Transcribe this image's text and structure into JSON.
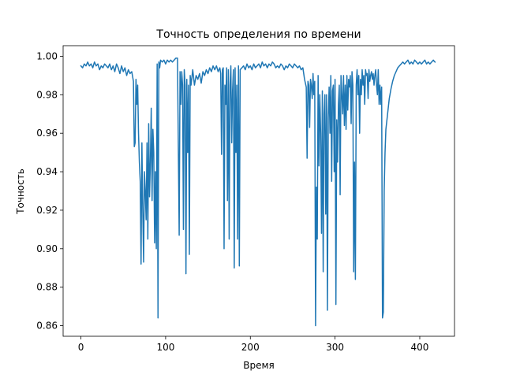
{
  "chart_data": {
    "type": "line",
    "title": "Точность определения по времени",
    "xlabel": "Время",
    "ylabel": "Точность",
    "xlim": [
      -21,
      441
    ],
    "ylim": [
      0.8545,
      1.0055
    ],
    "xticks": [
      0,
      100,
      200,
      300,
      400
    ],
    "xtick_labels": [
      "0",
      "100",
      "200",
      "300",
      "400"
    ],
    "yticks": [
      0.86,
      0.88,
      0.9,
      0.92,
      0.94,
      0.96,
      0.98,
      1.0
    ],
    "ytick_labels": [
      "0.86",
      "0.88",
      "0.90",
      "0.92",
      "0.94",
      "0.96",
      "0.98",
      "1.00"
    ],
    "grid": false,
    "legend": "none",
    "series": [
      {
        "color": "#1f77b4",
        "points": [
          [
            0,
            0.995
          ],
          [
            2,
            0.994
          ],
          [
            4,
            0.996
          ],
          [
            6,
            0.995
          ],
          [
            8,
            0.997
          ],
          [
            10,
            0.995
          ],
          [
            12,
            0.996
          ],
          [
            14,
            0.994
          ],
          [
            16,
            0.997
          ],
          [
            18,
            0.995
          ],
          [
            20,
            0.996
          ],
          [
            22,
            0.993
          ],
          [
            24,
            0.995
          ],
          [
            26,
            0.994
          ],
          [
            28,
            0.996
          ],
          [
            30,
            0.995
          ],
          [
            32,
            0.994
          ],
          [
            34,
            0.996
          ],
          [
            36,
            0.993
          ],
          [
            38,
            0.995
          ],
          [
            40,
            0.992
          ],
          [
            42,
            0.996
          ],
          [
            44,
            0.994
          ],
          [
            46,
            0.991
          ],
          [
            48,
            0.995
          ],
          [
            50,
            0.992
          ],
          [
            52,
            0.994
          ],
          [
            54,
            0.99
          ],
          [
            56,
            0.993
          ],
          [
            58,
            0.991
          ],
          [
            60,
            0.992
          ],
          [
            62,
            0.987
          ],
          [
            63,
            0.953
          ],
          [
            64,
            0.955
          ],
          [
            65,
            0.988
          ],
          [
            66,
            0.975
          ],
          [
            67,
            0.985
          ],
          [
            68,
            0.96
          ],
          [
            69,
            0.945
          ],
          [
            70,
            0.935
          ],
          [
            71,
            0.892
          ],
          [
            72,
            0.955
          ],
          [
            73,
            0.92
          ],
          [
            74,
            0.893
          ],
          [
            75,
            0.94
          ],
          [
            76,
            0.93
          ],
          [
            77,
            0.915
          ],
          [
            78,
            0.955
          ],
          [
            79,
            0.905
          ],
          [
            80,
            0.965
          ],
          [
            81,
            0.927
          ],
          [
            82,
            0.945
          ],
          [
            83,
            0.973
          ],
          [
            84,
            0.925
          ],
          [
            85,
            0.962
          ],
          [
            86,
            0.95
          ],
          [
            87,
            0.903
          ],
          [
            88,
            0.94
          ],
          [
            89,
            0.9
          ],
          [
            90,
            0.996
          ],
          [
            91,
            0.864
          ],
          [
            92,
            0.997
          ],
          [
            93,
            0.994
          ],
          [
            94,
            0.998
          ],
          [
            96,
            0.997
          ],
          [
            98,
            0.998
          ],
          [
            100,
            0.996
          ],
          [
            102,
            0.998
          ],
          [
            104,
            0.997
          ],
          [
            106,
            0.998
          ],
          [
            108,
            0.997
          ],
          [
            110,
            0.998
          ],
          [
            112,
            0.999
          ],
          [
            114,
            0.999
          ],
          [
            116,
            0.907
          ],
          [
            117,
            0.992
          ],
          [
            118,
            0.975
          ],
          [
            119,
            0.992
          ],
          [
            120,
            0.985
          ],
          [
            121,
            0.91
          ],
          [
            122,
            0.993
          ],
          [
            123,
            0.985
          ],
          [
            124,
            0.887
          ],
          [
            125,
            0.988
          ],
          [
            126,
            0.95
          ],
          [
            127,
            0.985
          ],
          [
            128,
            0.897
          ],
          [
            129,
            0.99
          ],
          [
            130,
            0.985
          ],
          [
            132,
            0.993
          ],
          [
            134,
            0.985
          ],
          [
            136,
            0.99
          ],
          [
            138,
            0.988
          ],
          [
            140,
            0.991
          ],
          [
            142,
            0.986
          ],
          [
            144,
            0.992
          ],
          [
            146,
            0.99
          ],
          [
            148,
            0.993
          ],
          [
            150,
            0.991
          ],
          [
            152,
            0.994
          ],
          [
            154,
            0.992
          ],
          [
            156,
            0.995
          ],
          [
            158,
            0.993
          ],
          [
            160,
            0.995
          ],
          [
            162,
            0.992
          ],
          [
            164,
            0.994
          ],
          [
            165,
            0.991
          ],
          [
            166,
            0.949
          ],
          [
            167,
            0.993
          ],
          [
            168,
            0.994
          ],
          [
            169,
            0.9
          ],
          [
            170,
            0.985
          ],
          [
            171,
            0.975
          ],
          [
            172,
            0.994
          ],
          [
            173,
            0.925
          ],
          [
            174,
            0.993
          ],
          [
            175,
            0.905
          ],
          [
            176,
            0.985
          ],
          [
            177,
            0.995
          ],
          [
            178,
            0.955
          ],
          [
            179,
            0.982
          ],
          [
            180,
            0.993
          ],
          [
            181,
            0.89
          ],
          [
            182,
            0.994
          ],
          [
            183,
            0.95
          ],
          [
            184,
            0.985
          ],
          [
            185,
            0.905
          ],
          [
            186,
            0.995
          ],
          [
            187,
            0.891
          ],
          [
            188,
            0.993
          ],
          [
            190,
            0.994
          ],
          [
            192,
            0.995
          ],
          [
            194,
            0.993
          ],
          [
            196,
            0.996
          ],
          [
            198,
            0.994
          ],
          [
            200,
            0.995
          ],
          [
            202,
            0.993
          ],
          [
            204,
            0.996
          ],
          [
            206,
            0.994
          ],
          [
            208,
            0.995
          ],
          [
            210,
            0.996
          ],
          [
            212,
            0.994
          ],
          [
            214,
            0.997
          ],
          [
            216,
            0.995
          ],
          [
            218,
            0.996
          ],
          [
            220,
            0.994
          ],
          [
            222,
            0.996
          ],
          [
            224,
            0.995
          ],
          [
            226,
            0.997
          ],
          [
            228,
            0.996
          ],
          [
            230,
            0.994
          ],
          [
            232,
            0.995
          ],
          [
            234,
            0.994
          ],
          [
            236,
            0.996
          ],
          [
            238,
            0.995
          ],
          [
            240,
            0.993
          ],
          [
            242,
            0.995
          ],
          [
            244,
            0.994
          ],
          [
            246,
            0.996
          ],
          [
            248,
            0.995
          ],
          [
            250,
            0.994
          ],
          [
            252,
            0.996
          ],
          [
            254,
            0.995
          ],
          [
            256,
            0.994
          ],
          [
            258,
            0.995
          ],
          [
            260,
            0.993
          ],
          [
            262,
            0.994
          ],
          [
            264,
            0.988
          ],
          [
            266,
            0.984
          ],
          [
            267,
            0.947
          ],
          [
            268,
            0.987
          ],
          [
            269,
            0.985
          ],
          [
            270,
            0.963
          ],
          [
            271,
            0.988
          ],
          [
            272,
            0.985
          ],
          [
            273,
            0.978
          ],
          [
            274,
            0.991
          ],
          [
            275,
            0.98
          ],
          [
            276,
            0.987
          ],
          [
            277,
            0.86
          ],
          [
            278,
            0.932
          ],
          [
            279,
            0.905
          ],
          [
            280,
            0.99
          ],
          [
            281,
            0.943
          ],
          [
            282,
            0.98
          ],
          [
            283,
            0.96
          ],
          [
            284,
            0.908
          ],
          [
            285,
            0.982
          ],
          [
            286,
            0.888
          ],
          [
            287,
            0.97
          ],
          [
            288,
            0.98
          ],
          [
            289,
            0.918
          ],
          [
            290,
            0.98
          ],
          [
            291,
            0.868
          ],
          [
            292,
            0.968
          ],
          [
            293,
            0.984
          ],
          [
            294,
            0.96
          ],
          [
            295,
            0.99
          ],
          [
            296,
            0.935
          ],
          [
            297,
            0.982
          ],
          [
            298,
            0.985
          ],
          [
            299,
            0.94
          ],
          [
            300,
            0.988
          ],
          [
            301,
            0.871
          ],
          [
            302,
            0.967
          ],
          [
            303,
            0.945
          ],
          [
            304,
            0.975
          ],
          [
            305,
            0.985
          ],
          [
            306,
            0.928
          ],
          [
            307,
            0.99
          ],
          [
            308,
            0.98
          ],
          [
            309,
            0.97
          ],
          [
            310,
            0.99
          ],
          [
            311,
            0.964
          ],
          [
            312,
            0.985
          ],
          [
            313,
            0.962
          ],
          [
            314,
            0.99
          ],
          [
            315,
            0.972
          ],
          [
            316,
            0.988
          ],
          [
            317,
            0.984
          ],
          [
            318,
            0.99
          ],
          [
            319,
            0.965
          ],
          [
            320,
            0.992
          ],
          [
            321,
            0.985
          ],
          [
            322,
            0.888
          ],
          [
            323,
            0.945
          ],
          [
            324,
            0.884
          ],
          [
            325,
            0.985
          ],
          [
            326,
            0.993
          ],
          [
            327,
            0.98
          ],
          [
            328,
            0.99
          ],
          [
            329,
            0.96
          ],
          [
            330,
            0.988
          ],
          [
            331,
            0.98
          ],
          [
            332,
            0.993
          ],
          [
            333,
            0.985
          ],
          [
            334,
            0.99
          ],
          [
            335,
            0.975
          ],
          [
            336,
            0.993
          ],
          [
            337,
            0.99
          ],
          [
            338,
            0.991
          ],
          [
            339,
            0.978
          ],
          [
            340,
            0.993
          ],
          [
            341,
            0.987
          ],
          [
            342,
            0.99
          ],
          [
            343,
            0.992
          ],
          [
            344,
            0.988
          ],
          [
            345,
            0.991
          ],
          [
            346,
            0.985
          ],
          [
            347,
            0.99
          ],
          [
            348,
            0.993
          ],
          [
            349,
            0.985
          ],
          [
            350,
            0.98
          ],
          [
            351,
            0.993
          ],
          [
            352,
            0.975
          ],
          [
            353,
            0.985
          ],
          [
            354,
            0.975
          ],
          [
            355,
            0.984
          ],
          [
            356,
            0.864
          ],
          [
            357,
            0.867
          ],
          [
            358,
            0.93
          ],
          [
            359,
            0.95
          ],
          [
            360,
            0.962
          ],
          [
            362,
            0.97
          ],
          [
            364,
            0.978
          ],
          [
            366,
            0.983
          ],
          [
            368,
            0.987
          ],
          [
            370,
            0.99
          ],
          [
            372,
            0.992
          ],
          [
            374,
            0.994
          ],
          [
            376,
            0.995
          ],
          [
            378,
            0.996
          ],
          [
            380,
            0.997
          ],
          [
            382,
            0.996
          ],
          [
            384,
            0.997
          ],
          [
            386,
            0.998
          ],
          [
            388,
            0.996
          ],
          [
            390,
            0.997
          ],
          [
            392,
            0.996
          ],
          [
            394,
            0.998
          ],
          [
            396,
            0.997
          ],
          [
            398,
            0.996
          ],
          [
            400,
            0.997
          ],
          [
            402,
            0.996
          ],
          [
            404,
            0.997
          ],
          [
            406,
            0.998
          ],
          [
            408,
            0.996
          ],
          [
            410,
            0.997
          ],
          [
            412,
            0.996
          ],
          [
            414,
            0.997
          ],
          [
            416,
            0.998
          ],
          [
            418,
            0.997
          ]
        ]
      }
    ]
  }
}
